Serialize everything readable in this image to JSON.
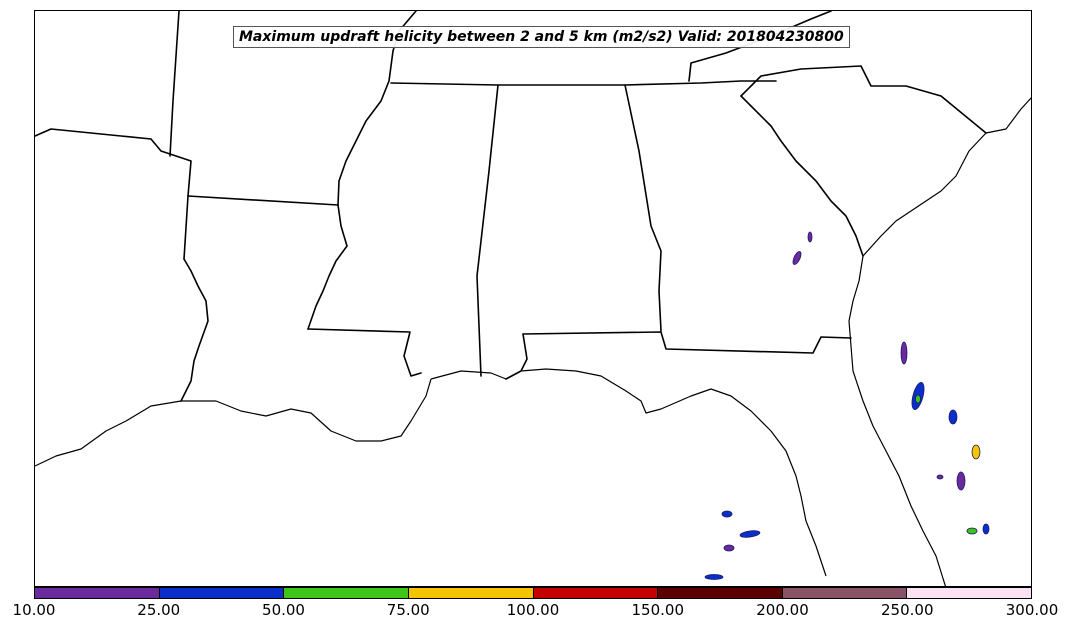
{
  "title": "Maximum updraft helicity between 2 and 5 km (m2/s2) Valid: 201804230800",
  "colorbar": {
    "colors": [
      "#6a2a9c",
      "#0a2fc8",
      "#3fc41a",
      "#f5c400",
      "#c40000",
      "#5a0000",
      "#8a5266",
      "#fde2f3"
    ],
    "labels": [
      "10.00",
      "25.00",
      "50.00",
      "75.00",
      "100.00",
      "150.00",
      "200.00",
      "250.00",
      "300.00"
    ]
  },
  "line_color": "#000000"
}
